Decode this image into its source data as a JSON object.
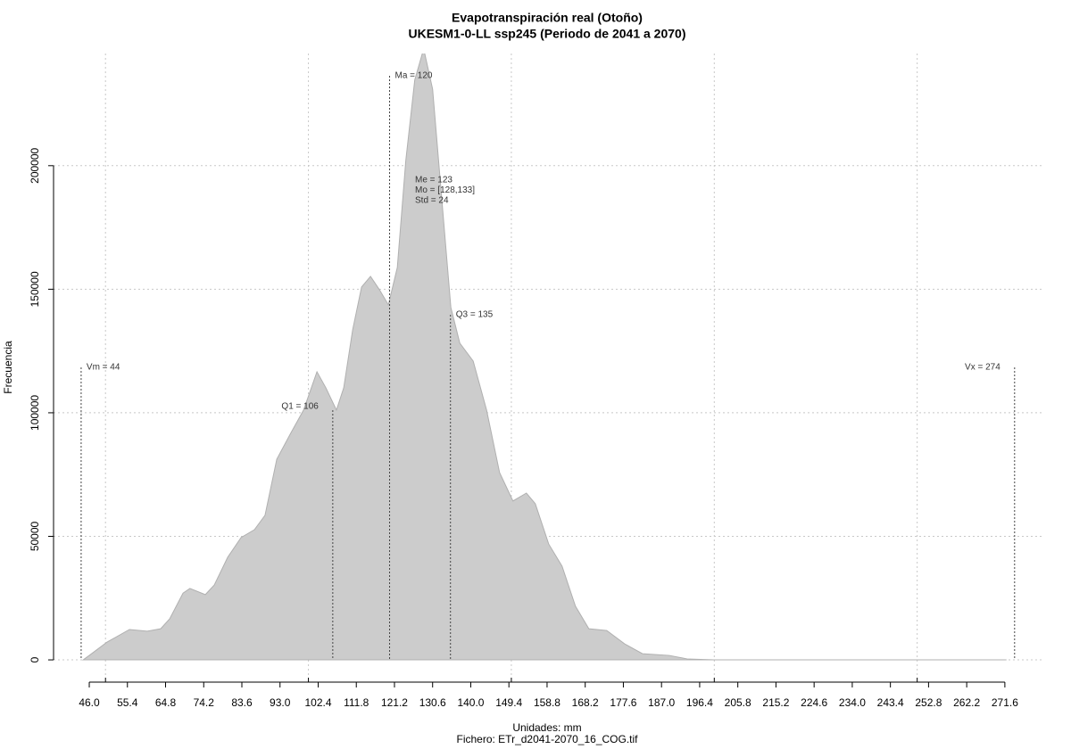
{
  "chart_data": {
    "type": "area",
    "title": "Evapotranspiración real (Otoño)",
    "subtitle": "UKESM1-0-LL ssp245 (Periodo de 2041 a 2070)",
    "x_label": "Unidades: mm",
    "caption": "Fichero: ETr_d2041-2070_16_COG.tif",
    "y_label": "Frecuencia",
    "x": [
      44.5,
      46.0,
      50.4,
      55.9,
      60.3,
      63.6,
      65.8,
      69.1,
      70.8,
      74.6,
      76.8,
      80.1,
      83.4,
      86.7,
      89.3,
      92.2,
      95.5,
      98.8,
      102.1,
      104.3,
      106.9,
      108.7,
      110.9,
      113.1,
      115.3,
      117.5,
      119.7,
      121.9,
      124.0,
      126.2,
      128.4,
      130.6,
      132.8,
      135.1,
      137.3,
      140.6,
      143.9,
      147.1,
      150.4,
      153.7,
      155.9,
      159.2,
      162.5,
      165.8,
      169.1,
      173.5,
      177.9,
      182.3,
      188.9,
      193.3,
      199.9,
      272.0
    ],
    "values": [
      0,
      1800,
      7200,
      12300,
      11600,
      12600,
      16600,
      27000,
      28900,
      26400,
      30300,
      41500,
      49500,
      52700,
      58500,
      81200,
      91300,
      101100,
      116600,
      110100,
      101100,
      110100,
      133600,
      150900,
      155200,
      149800,
      143700,
      158800,
      202200,
      234700,
      247300,
      231000,
      187700,
      142600,
      128200,
      120900,
      101100,
      75800,
      64300,
      67500,
      63200,
      46900,
      37900,
      21700,
      12600,
      11900,
      6500,
      2500,
      1800,
      400,
      0,
      0
    ],
    "color": "#cccccc",
    "xlim": [
      37.2,
      281.3
    ],
    "ylim": [
      -7200,
      245400
    ],
    "xticks": [
      {
        "value": 46,
        "label": "46.0"
      },
      55.4,
      64.8,
      74.2,
      83.6,
      {
        "value": 93,
        "label": "93.0"
      },
      102.4,
      111.8,
      121.2,
      130.6,
      {
        "value": 140,
        "label": "140.0"
      },
      149.4,
      158.8,
      168.2,
      177.6,
      {
        "value": 187,
        "label": "187.0"
      },
      196.4,
      205.8,
      215.2,
      224.6,
      {
        "value": 234,
        "label": "234.0"
      },
      243.4,
      252.8,
      262.2,
      271.6
    ],
    "xgrid": [
      50,
      100,
      150,
      200,
      250
    ],
    "yticks": [
      0,
      50000,
      100000,
      150000,
      200000
    ],
    "grid": true,
    "markers": [
      {
        "x": 44,
        "label": "Vm = 44"
      },
      {
        "x": 106,
        "label": "Q1 = 106"
      },
      {
        "x": 120,
        "label": "Ma = 120"
      },
      {
        "x": 135,
        "label": "Q3 = 135"
      },
      {
        "x": 274,
        "label": "Vx = 274"
      }
    ],
    "stats": [
      "Me = 123",
      "Mo = [128,133]",
      "Std = 24"
    ]
  }
}
